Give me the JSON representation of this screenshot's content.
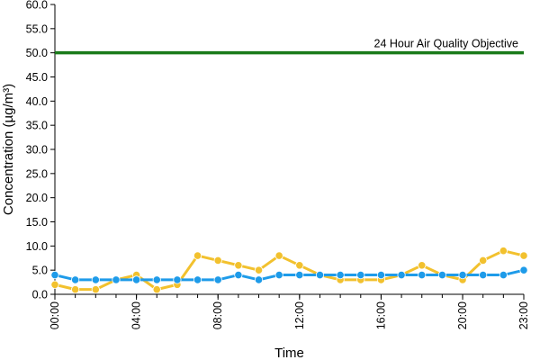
{
  "chart_data": {
    "type": "line",
    "title": "",
    "xlabel": "Time",
    "ylabel": "Concentration (µg/m³)",
    "ylim": [
      0,
      60
    ],
    "yticks": [
      "0.0",
      "5.0",
      "10.0",
      "15.0",
      "20.0",
      "25.0",
      "30.0",
      "35.0",
      "40.0",
      "45.0",
      "50.0",
      "55.0",
      "60.0"
    ],
    "xlim": [
      0,
      23
    ],
    "xticks": [
      {
        "x": 0,
        "label": "00:00"
      },
      {
        "x": 4,
        "label": "04:00"
      },
      {
        "x": 8,
        "label": "08:00"
      },
      {
        "x": 12,
        "label": "12:00"
      },
      {
        "x": 16,
        "label": "16:00"
      },
      {
        "x": 20,
        "label": "20:00"
      },
      {
        "x": 23,
        "label": "23:00"
      }
    ],
    "x": [
      0,
      1,
      2,
      3,
      4,
      5,
      6,
      7,
      8,
      9,
      10,
      11,
      12,
      13,
      14,
      15,
      16,
      17,
      18,
      19,
      20,
      21,
      22,
      23
    ],
    "grid": false,
    "legend": "none",
    "series": [
      {
        "color": "#f2c12e",
        "values": [
          2,
          1,
          1,
          3,
          4,
          1,
          2,
          8,
          7,
          6,
          5,
          8,
          6,
          4,
          3,
          3,
          3,
          4,
          6,
          4,
          3,
          7,
          9,
          8
        ]
      },
      {
        "color": "#1e9be9",
        "values": [
          4,
          3,
          3,
          3,
          3,
          3,
          3,
          3,
          3,
          4,
          3,
          4,
          4,
          4,
          4,
          4,
          4,
          4,
          4,
          4,
          4,
          4,
          4,
          5
        ]
      }
    ],
    "reference_line": {
      "value": 50,
      "label": "24 Hour Air Quality Objective",
      "color": "#1a7a1a"
    }
  }
}
